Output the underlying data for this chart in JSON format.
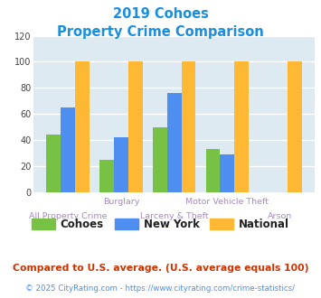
{
  "title_line1": "2019 Cohoes",
  "title_line2": "Property Crime Comparison",
  "title_color": "#1a8fe0",
  "categories": [
    "All Property Crime",
    "Burglary",
    "Larceny & Theft",
    "Motor Vehicle Theft",
    "Arson"
  ],
  "cohoes": [
    44,
    25,
    50,
    33,
    0
  ],
  "newyork": [
    65,
    42,
    76,
    29,
    0
  ],
  "national": [
    100,
    100,
    100,
    100,
    100
  ],
  "cohoes_color": "#77c244",
  "newyork_color": "#4d8ef0",
  "national_color": "#ffb833",
  "bg_color": "#ddeaf2",
  "ylim": [
    0,
    120
  ],
  "yticks": [
    0,
    20,
    40,
    60,
    80,
    100,
    120
  ],
  "grid_color": "#ffffff",
  "xlabel_color_upper": "#aa88cc",
  "xlabel_color_lower": "#aa88cc",
  "legend_labels": [
    "Cohoes",
    "New York",
    "National"
  ],
  "footnote1": "Compared to U.S. average. (U.S. average equals 100)",
  "footnote2": "© 2025 CityRating.com - https://www.cityrating.com/crime-statistics/",
  "footnote1_color": "#cc3300",
  "footnote2_color": "#4d8ef0"
}
